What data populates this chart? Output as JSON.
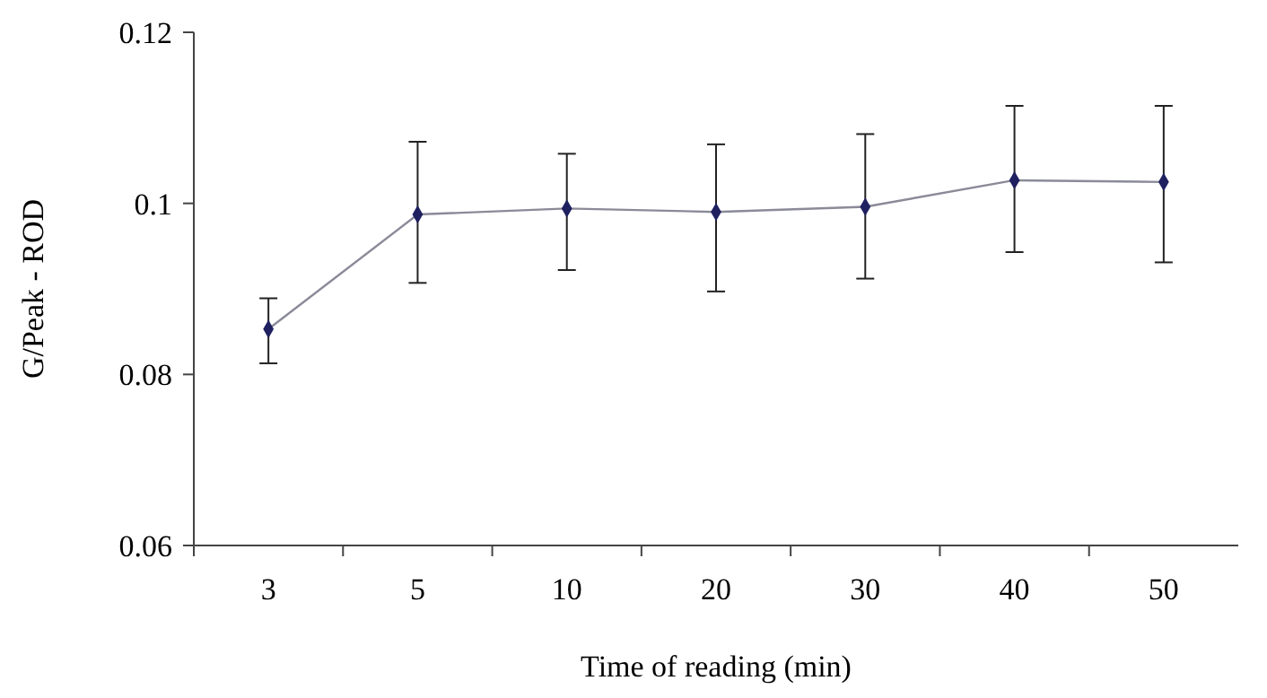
{
  "chart_data": {
    "type": "line",
    "xlabel": "Time of reading (min)",
    "ylabel": "G/Peak - ROD",
    "categories": [
      "3",
      "5",
      "10",
      "20",
      "30",
      "40",
      "50"
    ],
    "series": [
      {
        "color": "#1f2060",
        "values": [
          0.0853,
          0.0987,
          0.0994,
          0.099,
          0.0996,
          0.1027,
          0.1025
        ],
        "errors": [
          [
            0.0813,
            0.0889
          ],
          [
            0.0907,
            0.1072
          ],
          [
            0.0922,
            0.1058
          ],
          [
            0.0897,
            0.1069
          ],
          [
            0.0912,
            0.1081
          ],
          [
            0.0943,
            0.1114
          ],
          [
            0.0931,
            0.1114
          ]
        ]
      }
    ],
    "ylim": [
      0.06,
      0.12
    ],
    "yticks": [
      0.06,
      0.08,
      {
        "value": 0.1,
        "label": "0.1"
      },
      0.12
    ],
    "marker": "diamond",
    "line_style": "solid",
    "grid": false
  }
}
